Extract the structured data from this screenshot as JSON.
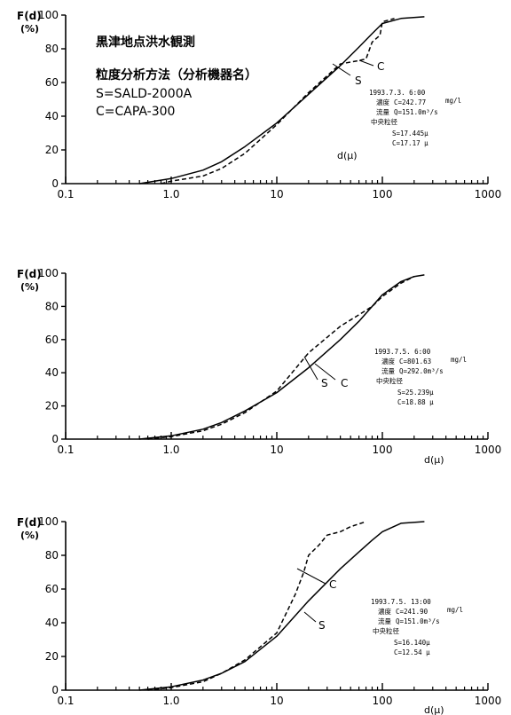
{
  "figure": {
    "header_title": "黒津地点洪水観測",
    "method_title": "粒度分析方法（分析機器名）",
    "method_s": "S=SALD-2000A",
    "method_c": "C=CAPA-300"
  },
  "chart_data": [
    {
      "type": "line",
      "xscale": "log",
      "xlim": [
        0.1,
        1000
      ],
      "ylim": [
        0,
        100
      ],
      "ylabel_line1": "F(d)",
      "ylabel_line2": "(%)",
      "xlabel": "d(μ)",
      "x_ticklabels": [
        "0.1",
        "1.0",
        "10",
        "100",
        "1000"
      ],
      "y_ticklabels": [
        "0",
        "20",
        "40",
        "60",
        "80",
        "100"
      ],
      "grid": false,
      "series": [
        {
          "name": "S",
          "style": "solid",
          "x": [
            0.5,
            1,
            2,
            3,
            5,
            10,
            20,
            40,
            60,
            80,
            100,
            150,
            250
          ],
          "y": [
            0,
            3,
            8,
            13,
            22,
            36,
            53,
            70,
            81,
            89,
            95,
            98,
            99
          ]
        },
        {
          "name": "C",
          "style": "dashed",
          "x": [
            0.8,
            1,
            2,
            3,
            5,
            10,
            20,
            40,
            60,
            70,
            80,
            95,
            100,
            130
          ],
          "y": [
            0,
            1.5,
            4.5,
            9,
            18,
            35,
            54,
            71,
            73,
            74,
            84,
            88,
            96,
            98
          ]
        }
      ],
      "annotation": {
        "datetime": "1993.7.3. 6:00",
        "conc_label": "濃度",
        "conc": "C=242.77",
        "conc_unit": "mg/l",
        "flow_label": "流量",
        "flow": "Q=151.0m³/s",
        "median_label": "中央粒径",
        "median_s": "S=17.445μ",
        "median_c": "C=17.17 μ"
      }
    },
    {
      "type": "line",
      "xscale": "log",
      "xlim": [
        0.1,
        1000
      ],
      "ylim": [
        0,
        100
      ],
      "ylabel_line1": "F(d)",
      "ylabel_line2": "(%)",
      "xlabel": "d(μ)",
      "x_ticklabels": [
        "0.1",
        "1.0",
        "10",
        "100",
        "1000"
      ],
      "y_ticklabels": [
        "0",
        "20",
        "40",
        "60",
        "80",
        "100"
      ],
      "grid": false,
      "series": [
        {
          "name": "S",
          "style": "solid",
          "x": [
            0.5,
            1,
            2,
            3,
            5,
            10,
            20,
            40,
            60,
            80,
            100,
            150,
            200,
            250
          ],
          "y": [
            0,
            2,
            6,
            10,
            17,
            28,
            43,
            60,
            71,
            80,
            87,
            95,
            98,
            99
          ]
        },
        {
          "name": "C",
          "style": "dashed",
          "x": [
            0.6,
            1,
            2,
            3,
            5,
            10,
            20,
            40,
            60,
            80,
            100,
            150,
            200
          ],
          "y": [
            0,
            1.5,
            5,
            9,
            16,
            29,
            52,
            68,
            75,
            80,
            86,
            94,
            98
          ]
        }
      ],
      "annotation": {
        "datetime": "1993.7.5. 6:00",
        "conc_label": "濃度",
        "conc": "C=801.63",
        "conc_unit": "mg/l",
        "flow_label": "流量",
        "flow": "Q=292.0m³/s",
        "median_label": "中央粒径",
        "median_s": "S=25.239μ",
        "median_c": "C=18.88 μ"
      }
    },
    {
      "type": "line",
      "xscale": "log",
      "xlim": [
        0.1,
        1000
      ],
      "ylim": [
        0,
        100
      ],
      "ylabel_line1": "F(d)",
      "ylabel_line2": "(%)",
      "xlabel": "d(μ)",
      "x_ticklabels": [
        "0.1",
        "1.0",
        "10",
        "100",
        "1000"
      ],
      "y_ticklabels": [
        "0",
        "20",
        "40",
        "60",
        "80",
        "100"
      ],
      "grid": false,
      "series": [
        {
          "name": "S",
          "style": "solid",
          "x": [
            0.5,
            1,
            2,
            3,
            5,
            10,
            20,
            40,
            60,
            80,
            100,
            150,
            250
          ],
          "y": [
            0,
            2,
            6,
            10,
            17,
            32,
            53,
            72,
            82,
            89,
            94,
            99,
            100
          ]
        },
        {
          "name": "C",
          "style": "dashed",
          "x": [
            0.6,
            1,
            2,
            3,
            5,
            10,
            15,
            18,
            20,
            25,
            30,
            40,
            50,
            70
          ],
          "y": [
            0,
            1.5,
            5,
            10,
            18,
            34,
            57,
            70,
            80,
            86,
            92,
            94,
            97,
            100
          ]
        }
      ],
      "annotation": {
        "datetime": "1993.7.5. 13:00",
        "conc_label": "濃度",
        "conc": "C=241.90",
        "conc_unit": "mg/l",
        "flow_label": "流量",
        "flow": "Q=151.0m³/s",
        "median_label": "中央粒径",
        "median_s": "S=16.140μ",
        "median_c": "C=12.54 μ"
      }
    }
  ]
}
